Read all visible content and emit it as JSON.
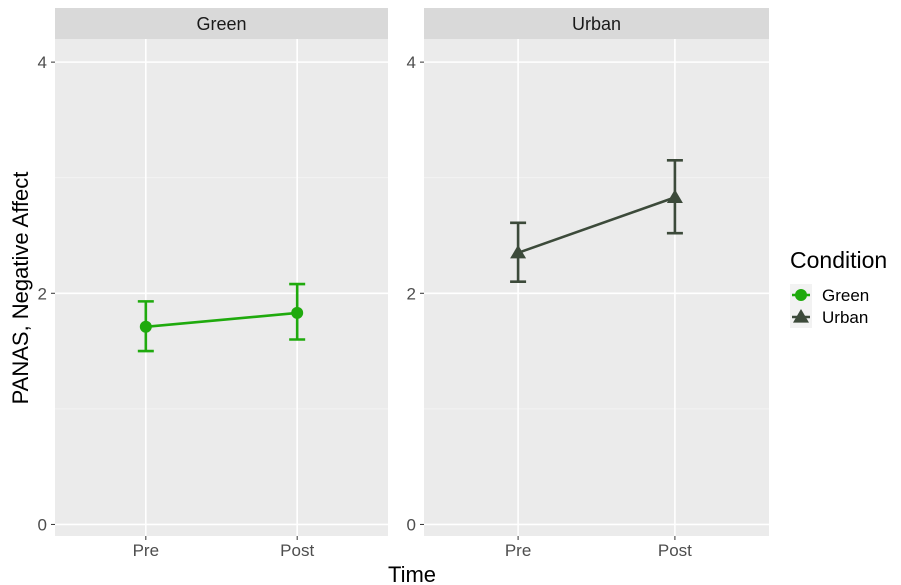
{
  "chart_data": {
    "type": "line",
    "facets": [
      "Green",
      "Urban"
    ],
    "categories": [
      "Pre",
      "Post"
    ],
    "xlabel": "Time",
    "ylabel": "PANAS, Negative Affect",
    "ylim": [
      -0.1,
      4.2
    ],
    "y_ticks": [
      0,
      2,
      4
    ],
    "grid": true,
    "legend": {
      "title": "Condition",
      "placement": "right"
    },
    "series": [
      {
        "name": "Green",
        "facet": "Green",
        "color": "#1faa0d",
        "marker": "circle",
        "values": [
          1.71,
          1.83
        ],
        "error_low": [
          1.5,
          1.6
        ],
        "error_high": [
          1.93,
          2.08
        ]
      },
      {
        "name": "Urban",
        "facet": "Urban",
        "color": "#3c4a3a",
        "marker": "triangle",
        "values": [
          2.35,
          2.83
        ],
        "error_low": [
          2.1,
          2.52
        ],
        "error_high": [
          2.61,
          3.15
        ]
      }
    ]
  }
}
